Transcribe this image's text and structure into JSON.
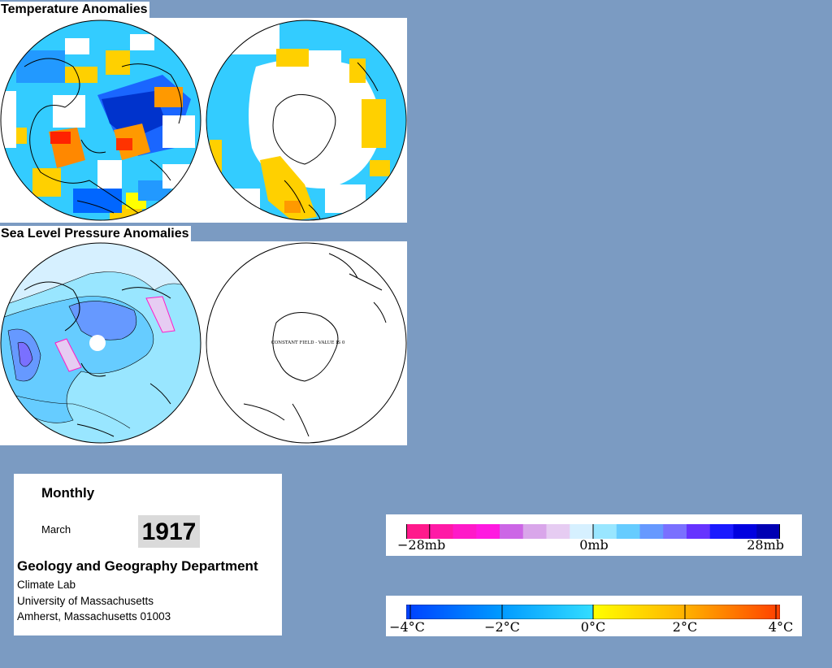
{
  "temperature_section": {
    "title": "Temperature Anomalies"
  },
  "pressure_section": {
    "title": "Sea Level Pressure Anomalies",
    "south_note": "CONSTANT FIELD - VALUE IS 0"
  },
  "info": {
    "period": "Monthly",
    "month": "March",
    "year": "1917",
    "department": "Geology and Geography Department",
    "lab": "Climate Lab",
    "university": "University of Massachusetts",
    "address": "Amherst, Massachusetts 01003"
  },
  "pressure_legend": {
    "labels": [
      "−28mb",
      "0mb",
      "28mb"
    ],
    "colors": [
      "#ff1a8c",
      "#ff1aa6",
      "#ff1ac8",
      "#ff1ae0",
      "#cc66e6",
      "#d9a6ea",
      "#e6ccf2",
      "#d6f0ff",
      "#99e6ff",
      "#66ccff",
      "#6699ff",
      "#7a70ff",
      "#6633ff",
      "#1a1aff",
      "#0000e0",
      "#0000b3"
    ]
  },
  "temperature_legend": {
    "labels": [
      "−4°C",
      "−2°C",
      "0°C",
      "2°C",
      "4°C"
    ],
    "stops": [
      "#0040ff",
      "#0099ff",
      "#33ddff",
      "#ffff00",
      "#ffb000",
      "#ff4000"
    ]
  },
  "colors": {
    "background": "#7b9bc2",
    "land_outline": "#000000"
  }
}
